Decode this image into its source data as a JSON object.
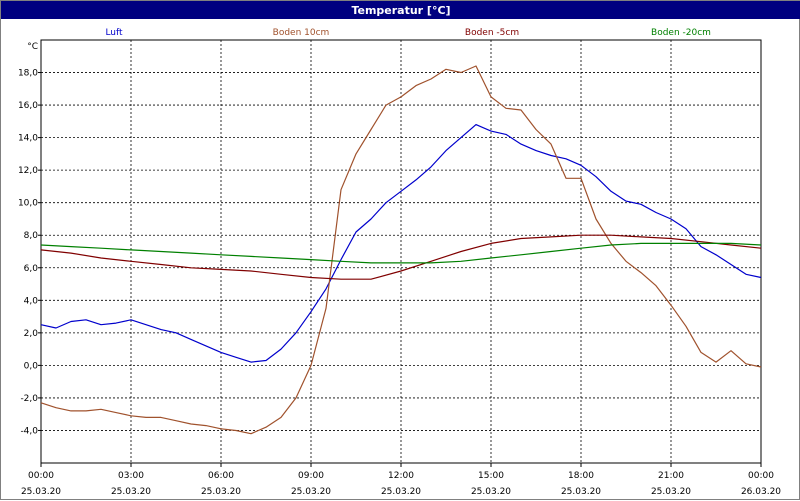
{
  "window": {
    "title": "Temperatur [°C]"
  },
  "chart_data": {
    "type": "line",
    "title": "Temperatur [°C]",
    "unit_label": "°C",
    "ylim": [
      -6,
      20
    ],
    "yticks": [
      "18,0",
      "16,0",
      "14,0",
      "12,0",
      "10,0",
      "8,0",
      "6,0",
      "4,0",
      "2,0",
      "0,0",
      "-2,0",
      "-4,0"
    ],
    "ytick_values": [
      18,
      16,
      14,
      12,
      10,
      8,
      6,
      4,
      2,
      0,
      -2,
      -4
    ],
    "xlim": [
      0,
      24
    ],
    "xticks": [
      {
        "time": "00:00",
        "date": "25.03.20"
      },
      {
        "time": "03:00",
        "date": "25.03.20"
      },
      {
        "time": "06:00",
        "date": "25.03.20"
      },
      {
        "time": "09:00",
        "date": "25.03.20"
      },
      {
        "time": "12:00",
        "date": "25.03.20"
      },
      {
        "time": "15:00",
        "date": "25.03.20"
      },
      {
        "time": "18:00",
        "date": "25.03.20"
      },
      {
        "time": "21:00",
        "date": "25.03.20"
      },
      {
        "time": "00:00",
        "date": "26.03.20"
      }
    ],
    "grid": true,
    "legend_position": "top",
    "series": [
      {
        "name": "Luft",
        "color": "#0000cc",
        "x": [
          0,
          0.5,
          1,
          1.5,
          2,
          2.5,
          3,
          3.5,
          4,
          4.5,
          5,
          5.5,
          6,
          6.5,
          7,
          7.5,
          8,
          8.5,
          9,
          9.5,
          10,
          10.5,
          11,
          11.5,
          12,
          12.5,
          13,
          13.5,
          14,
          14.5,
          15,
          15.5,
          16,
          16.5,
          17,
          17.5,
          18,
          18.5,
          19,
          19.5,
          20,
          20.5,
          21,
          21.5,
          22,
          22.5,
          23,
          23.5,
          24
        ],
        "values": [
          2.5,
          2.3,
          2.7,
          2.8,
          2.5,
          2.6,
          2.8,
          2.5,
          2.2,
          2.0,
          1.6,
          1.2,
          0.8,
          0.5,
          0.2,
          0.3,
          1.0,
          2.0,
          3.3,
          4.7,
          6.5,
          8.2,
          9.0,
          10.0,
          10.7,
          11.4,
          12.2,
          13.2,
          14.0,
          14.8,
          14.4,
          14.2,
          13.6,
          13.2,
          12.9,
          12.7,
          12.3,
          11.6,
          10.7,
          10.1,
          9.9,
          9.4,
          9.0,
          8.4,
          7.3,
          6.8,
          6.2,
          5.6,
          5.4
        ]
      },
      {
        "name": "Boden 10cm",
        "color": "#a0522d",
        "x": [
          0,
          0.5,
          1,
          1.5,
          2,
          2.5,
          3,
          3.5,
          4,
          4.5,
          5,
          5.5,
          6,
          6.5,
          7,
          7.5,
          8,
          8.5,
          9,
          9.5,
          10,
          10.5,
          11,
          11.5,
          12,
          12.5,
          13,
          13.5,
          14,
          14.5,
          15,
          15.5,
          16,
          16.5,
          17,
          17.5,
          18,
          18.5,
          19,
          19.5,
          20,
          20.5,
          21,
          21.5,
          22,
          22.5,
          23,
          23.5,
          24
        ],
        "values": [
          -2.3,
          -2.6,
          -2.8,
          -2.8,
          -2.7,
          -2.9,
          -3.1,
          -3.2,
          -3.2,
          -3.4,
          -3.6,
          -3.7,
          -3.9,
          -4.0,
          -4.2,
          -3.8,
          -3.2,
          -2.0,
          0.0,
          3.5,
          10.8,
          13.0,
          14.5,
          16.0,
          16.5,
          17.2,
          17.6,
          18.2,
          18.0,
          18.4,
          16.5,
          15.8,
          15.7,
          14.5,
          13.6,
          11.5,
          11.5,
          9.0,
          7.5,
          6.4,
          5.7,
          4.9,
          3.7,
          2.4,
          0.8,
          0.2,
          0.9,
          0.1,
          -0.1
        ]
      },
      {
        "name": "Boden -5cm",
        "color": "#800000",
        "x": [
          0,
          1,
          2,
          3,
          4,
          5,
          6,
          7,
          8,
          9,
          10,
          11,
          12,
          13,
          14,
          15,
          16,
          17,
          18,
          19,
          20,
          21,
          22,
          23,
          24
        ],
        "values": [
          7.1,
          6.9,
          6.6,
          6.4,
          6.2,
          6.0,
          5.9,
          5.8,
          5.6,
          5.4,
          5.3,
          5.3,
          5.8,
          6.4,
          7.0,
          7.5,
          7.8,
          7.9,
          8.0,
          8.0,
          7.9,
          7.8,
          7.6,
          7.4,
          7.2
        ]
      },
      {
        "name": "Boden -20cm",
        "color": "#008000",
        "x": [
          0,
          1,
          2,
          3,
          4,
          5,
          6,
          7,
          8,
          9,
          10,
          11,
          12,
          13,
          14,
          15,
          16,
          17,
          18,
          19,
          20,
          21,
          22,
          23,
          24
        ],
        "values": [
          7.4,
          7.3,
          7.2,
          7.1,
          7.0,
          6.9,
          6.8,
          6.7,
          6.6,
          6.5,
          6.4,
          6.3,
          6.3,
          6.3,
          6.4,
          6.6,
          6.8,
          7.0,
          7.2,
          7.4,
          7.5,
          7.5,
          7.5,
          7.5,
          7.4
        ]
      }
    ]
  }
}
